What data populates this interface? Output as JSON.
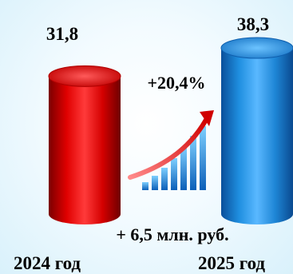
{
  "chart_data": {
    "type": "bar",
    "categories": [
      "2024 год",
      "2025 год"
    ],
    "values": [
      31.8,
      38.3
    ],
    "value_labels": [
      "31,8",
      "38,3"
    ],
    "colors": [
      "#e00000",
      "#1f8fe0"
    ],
    "annotations": {
      "growth_percent": "+20,4%",
      "difference": "+ 6,5 млн. руб."
    },
    "growth_icon": "rising-bar-chart-with-arrow-icon"
  }
}
